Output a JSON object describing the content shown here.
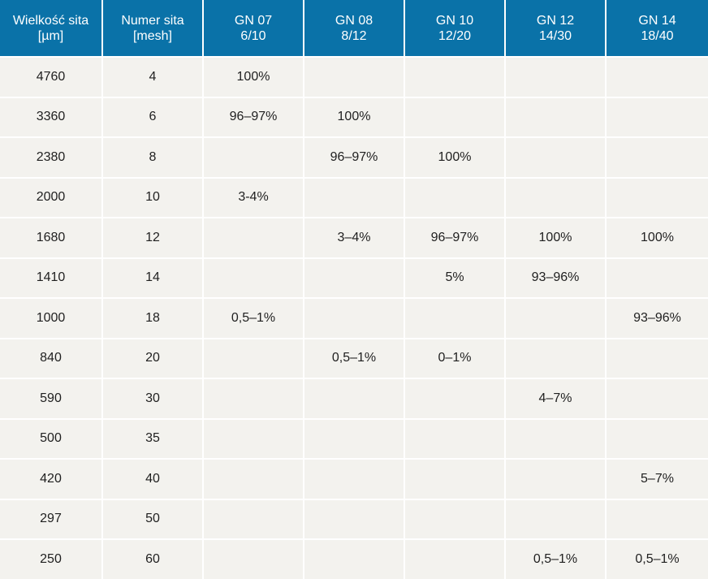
{
  "table": {
    "header": [
      {
        "line1": "Wielkość sita",
        "line2": "[µm]"
      },
      {
        "line1": "Numer sita",
        "line2": "[mesh]"
      },
      {
        "line1": "GN 07",
        "line2": "6/10"
      },
      {
        "line1": "GN 08",
        "line2": "8/12"
      },
      {
        "line1": "GN 10",
        "line2": "12/20"
      },
      {
        "line1": "GN 12",
        "line2": "14/30"
      },
      {
        "line1": "GN 14",
        "line2": "18/40"
      }
    ],
    "rows": [
      [
        "4760",
        "4",
        "100%",
        "",
        "",
        "",
        ""
      ],
      [
        "3360",
        "6",
        "96–97%",
        "100%",
        "",
        "",
        ""
      ],
      [
        "2380",
        "8",
        "",
        "96–97%",
        "100%",
        "",
        ""
      ],
      [
        "2000",
        "10",
        "3-4%",
        "",
        "",
        "",
        ""
      ],
      [
        "1680",
        "12",
        "",
        "3–4%",
        "96–97%",
        "100%",
        "100%"
      ],
      [
        "1410",
        "14",
        "",
        "",
        "5%",
        "93–96%",
        ""
      ],
      [
        "1000",
        "18",
        "0,5–1%",
        "",
        "",
        "",
        "93–96%"
      ],
      [
        "840",
        "20",
        "",
        "0,5–1%",
        "0–1%",
        "",
        ""
      ],
      [
        "590",
        "30",
        "",
        "",
        "",
        "4–7%",
        ""
      ],
      [
        "500",
        "35",
        "",
        "",
        "",
        "",
        ""
      ],
      [
        "420",
        "40",
        "",
        "",
        "",
        "",
        "5–7%"
      ],
      [
        "297",
        "50",
        "",
        "",
        "",
        "",
        ""
      ],
      [
        "250",
        "60",
        "",
        "",
        "",
        "0,5–1%",
        "0,5–1%"
      ]
    ]
  },
  "colors": {
    "header_bg": "#0a72a8",
    "header_text": "#ffffff",
    "cell_bg": "#f3f2ee",
    "cell_text": "#1f1f1f",
    "grid_lines": "#ffffff"
  }
}
